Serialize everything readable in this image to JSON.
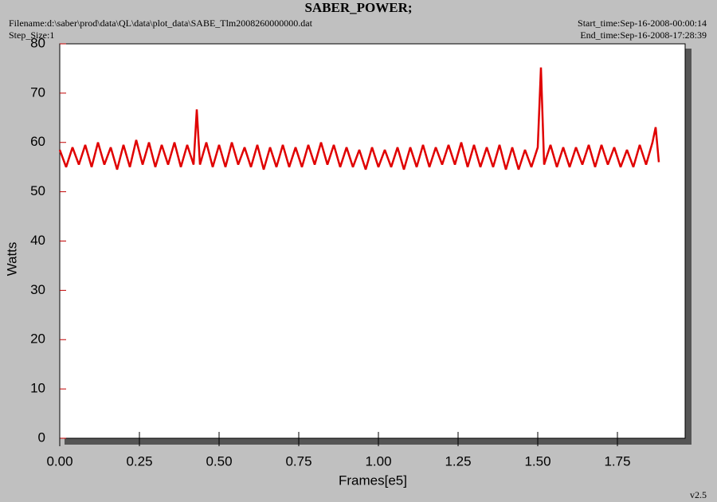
{
  "chart_data": {
    "type": "line",
    "title": "SABER_POWER;",
    "filename": "Filename:d:\\saber\\prod\\data\\QL\\data\\plot_data\\SABE_Tlm2008260000000.dat",
    "step_size": "Step_Size:1",
    "start_time": "Start_time:Sep-16-2008-00:00:14",
    "end_time": "End_time:Sep-16-2008-17:28:39",
    "version": "v2.5",
    "x_label": "Frames[e5]",
    "y_label": "Watts",
    "xlim": [
      0,
      1.9625
    ],
    "ylim": [
      0,
      80
    ],
    "xticks": [
      {
        "value": 0,
        "label": "0.00"
      },
      {
        "value": 0.25,
        "label": "0.25"
      },
      {
        "value": 0.5,
        "label": "0.50"
      },
      {
        "value": 0.75,
        "label": "0.75"
      },
      {
        "value": 1,
        "label": "1.00"
      },
      {
        "value": 1.25,
        "label": "1.25"
      },
      {
        "value": 1.5,
        "label": "1.50"
      },
      {
        "value": 1.75,
        "label": "1.75"
      }
    ],
    "yticks": [
      0,
      10,
      20,
      30,
      40,
      50,
      60,
      70,
      80
    ],
    "series": [
      {
        "color": "#e00000",
        "x": [
          0,
          0.02,
          0.04,
          0.06,
          0.08,
          0.1,
          0.12,
          0.14,
          0.16,
          0.18,
          0.2,
          0.22,
          0.24,
          0.26,
          0.28,
          0.3,
          0.32,
          0.34,
          0.36,
          0.38,
          0.4,
          0.42,
          0.43,
          0.44,
          0.46,
          0.48,
          0.5,
          0.52,
          0.54,
          0.56,
          0.58,
          0.6,
          0.62,
          0.64,
          0.66,
          0.68,
          0.7,
          0.72,
          0.74,
          0.76,
          0.78,
          0.8,
          0.82,
          0.84,
          0.86,
          0.88,
          0.9,
          0.92,
          0.94,
          0.96,
          0.98,
          1.0,
          1.02,
          1.04,
          1.06,
          1.08,
          1.1,
          1.12,
          1.14,
          1.16,
          1.18,
          1.2,
          1.22,
          1.24,
          1.26,
          1.28,
          1.3,
          1.32,
          1.34,
          1.36,
          1.38,
          1.4,
          1.42,
          1.44,
          1.46,
          1.48,
          1.5,
          1.51,
          1.52,
          1.54,
          1.56,
          1.58,
          1.6,
          1.62,
          1.64,
          1.66,
          1.68,
          1.7,
          1.72,
          1.74,
          1.76,
          1.78,
          1.8,
          1.82,
          1.84,
          1.86,
          1.87,
          1.88
        ],
        "values": [
          58.5,
          55,
          59,
          55.5,
          59.5,
          55,
          60,
          55.5,
          59,
          54.5,
          59.5,
          55,
          60.5,
          55.5,
          60,
          55,
          59.5,
          55.5,
          60,
          55,
          59.5,
          55.5,
          66.7,
          55.5,
          60,
          55,
          59.5,
          55,
          60,
          55.5,
          59,
          55,
          59.5,
          54.5,
          59,
          55,
          59.5,
          55,
          59,
          55,
          59.5,
          55.5,
          60,
          55.5,
          59.5,
          55,
          59,
          55,
          58.5,
          54.5,
          59,
          55,
          58.5,
          55,
          59,
          54.5,
          59,
          55,
          59.5,
          55,
          59,
          55.5,
          59.5,
          55.5,
          60,
          55,
          59.5,
          55,
          59,
          55,
          59.5,
          54.5,
          59,
          54.5,
          58.5,
          55,
          59,
          75.2,
          55.5,
          59.5,
          55,
          59,
          55,
          59,
          55.5,
          59.5,
          55,
          59.5,
          55.5,
          59,
          55,
          58.5,
          55,
          59.5,
          55.5,
          60,
          63.1,
          56
        ]
      }
    ]
  }
}
